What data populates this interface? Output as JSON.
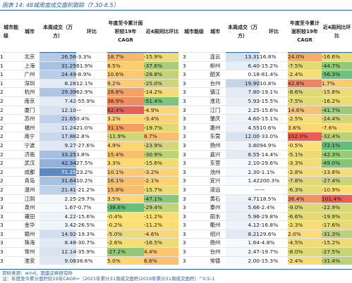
{
  "figure_title": "图表 14: 48城周度成交面积跟踪（7.30-8.5）",
  "headers": {
    "tier": "城市能级",
    "city": "城市",
    "area": "本周成交（万方）",
    "yoy": "环比",
    "cagr": "年度至今累计面积较19年CAGR",
    "ring": "近4周同比环比"
  },
  "rows_left": [
    [
      "1",
      "北京",
      "26.56",
      "-3.3%",
      "18.7%",
      "-15.9%"
    ],
    [
      "1",
      "上海",
      "31.25",
      "61.9%",
      "8.5%",
      "-37.6%"
    ],
    [
      "1",
      "广州",
      "24.49",
      "-8.9%",
      "10.6%",
      "-28.8%"
    ],
    [
      "1",
      "深圳",
      "8.28",
      "12.1%",
      "9.2%",
      "-25.0%"
    ],
    [
      "2",
      "杭州",
      "29.39",
      "62.9%",
      "28.8%",
      "-14.2%"
    ],
    [
      "2",
      "南京",
      "7.42",
      "-55.9%",
      "38.9%",
      "-51.4%"
    ],
    [
      "2",
      "厦门",
      "12.10",
      "—",
      "62.4%",
      "-4.9%"
    ],
    [
      "2",
      "苏州",
      "21.65",
      "0.4%",
      "3.2%",
      "-3.4%"
    ],
    [
      "2",
      "福州",
      "11.24",
      "21.0%",
      "31.1%",
      "-19.7%"
    ],
    [
      "2",
      "南宁",
      "17.88",
      "2.8%",
      "-11.9%",
      "8.7%"
    ],
    [
      "2",
      "宁波",
      "9.27",
      "-27.6%",
      "4.9%",
      "-23.9%"
    ],
    [
      "2",
      "济南",
      "33.25",
      "3.8%",
      "15.4%",
      "-30.9%"
    ],
    [
      "2",
      "武汉",
      "42.34",
      "27.5%",
      "3.3%",
      "-15.6%"
    ],
    [
      "2",
      "成都",
      "71.25",
      "23.2%",
      "10.1%",
      "-3.2%"
    ],
    [
      "2",
      "青岛",
      "31.64",
      "10.2%",
      "16.1%",
      "-2.1%"
    ],
    [
      "2",
      "温州",
      "21.41",
      "-21.2%",
      "15.8%",
      "-15.7%"
    ],
    [
      "3",
      "江阴",
      "2.25",
      "-29.7%",
      "3.5%",
      "-47.1%"
    ],
    [
      "3",
      "泉州",
      "1.67",
      "-0.7%",
      "-38.6%",
      "-29.4%"
    ],
    [
      "3",
      "莆田",
      "4.22",
      "-15.6%",
      "-0.4%",
      "-11.2%"
    ],
    [
      "3",
      "金华",
      "3.42",
      "-26.5%",
      "-0.2%",
      "-11.2%"
    ],
    [
      "3",
      "赣州",
      "14.92",
      "-19.3%",
      "-5.0%",
      "-4.6%"
    ],
    [
      "3",
      "珠海",
      "8.48",
      "-30.7%",
      "-2.6%",
      "-16.5%"
    ],
    [
      "3",
      "常州",
      "12.14",
      "-35.9%",
      "-27.2%",
      "4.4%"
    ],
    [
      "3",
      "淮安",
      "9.08",
      "38.6%",
      "5.0%",
      "6.6%"
    ]
  ],
  "rows_right": [
    [
      "3",
      "连云",
      "13.31",
      "16.8%",
      "24.0%",
      "-16.6%"
    ],
    [
      "3",
      "柳州",
      "6.40",
      "-15.2%",
      "-7.5%",
      "-44.7%"
    ],
    [
      "3",
      "韶关",
      "0.18",
      "-81.4%",
      "-2.4%",
      "-56.3%"
    ],
    [
      "3",
      "台州",
      "19.90",
      "10.8%",
      "42.8%",
      "1.7%"
    ],
    [
      "3",
      "镇江",
      "7.80",
      "-19.1%",
      "-8.6%",
      "-15.8%"
    ],
    [
      "3",
      "淮北",
      "5.93",
      "-15.5%",
      "-7.5%",
      "-16.2%"
    ],
    [
      "3",
      "江门",
      "2.25",
      "-15.6%",
      "14.6%",
      "-41.7%"
    ],
    [
      "3",
      "肇庆",
      "4.60",
      "-15.1%",
      "-2.5%",
      "-24.4%"
    ],
    [
      "3",
      "惠州",
      "4.55",
      "10.6%",
      "3.6%",
      "-7.6%"
    ],
    [
      "3",
      "东莞",
      "12.00",
      "-33.0%",
      "102.0%",
      "-32.4%"
    ],
    [
      "3",
      "扬州",
      "3.80",
      "94.9%",
      "-0.5%",
      "-72.1%"
    ],
    [
      "3",
      "嘉兴",
      "8.55",
      "-14.4%",
      "-5.1%",
      "-42.3%"
    ],
    [
      "3",
      "东营",
      "2.10",
      "-29.6%",
      "-3.3%",
      "-49.0%"
    ],
    [
      "3",
      "池州",
      "2.30",
      "-1.1%",
      "-2.8%",
      "-13.8%"
    ],
    [
      "3",
      "宜兴",
      "1.42",
      "200.3%",
      "-7.8%",
      "-27.4%"
    ],
    [
      "3",
      "清远",
      "—",
      "—",
      "-6.3%",
      "-10.9%"
    ],
    [
      "3",
      "黄石",
      "4.71",
      "18.5%",
      "36.4%",
      "101.4%"
    ],
    [
      "3",
      "泰州",
      "5.66",
      "-2.4%",
      "-9.0%",
      "-22.9%"
    ],
    [
      "3",
      "丽水",
      "5.96",
      "-29.8%",
      "-6.6%",
      "-19.9%"
    ],
    [
      "3",
      "衢州",
      "4.12",
      "-16.8%",
      "-2.3%",
      "-17.6%"
    ],
    [
      "3",
      "绍兴",
      "8.21",
      "29.6%",
      "2.0%",
      "-31.3%"
    ],
    [
      "3",
      "扬州",
      "1.64",
      "-4.8%",
      "-4.5%",
      "-15.2%"
    ],
    [
      "3",
      "台州",
      "2.47",
      "-19.7%",
      "-8.0%",
      "-27.5%"
    ],
    [
      "3",
      "常德",
      "2.00",
      "-15.3%",
      "-2.4%",
      "-31.4%"
    ]
  ],
  "footnote_source": "资料来源：wind，国盛证券研究所",
  "footnote_note": "注：年度至今累计面积较19年CAGR=（2021年累计31周成交面积/2019年累计31周成交面积）^0.5-1"
}
